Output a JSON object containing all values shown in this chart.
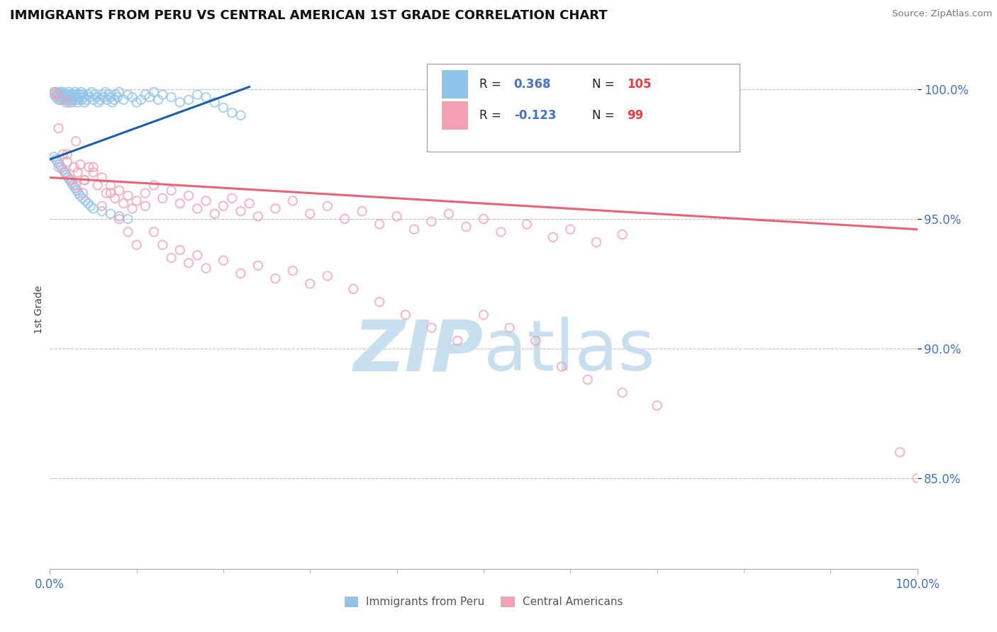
{
  "title": "IMMIGRANTS FROM PERU VS CENTRAL AMERICAN 1ST GRADE CORRELATION CHART",
  "source": "Source: ZipAtlas.com",
  "ylabel": "1st Grade",
  "yticks": [
    0.85,
    0.9,
    0.95,
    1.0
  ],
  "ytick_labels": [
    "85.0%",
    "90.0%",
    "95.0%",
    "100.0%"
  ],
  "xlim": [
    0.0,
    1.0
  ],
  "ylim": [
    0.815,
    1.015
  ],
  "blue_R": "0.368",
  "blue_N": "105",
  "pink_R": "-0.123",
  "pink_N": "99",
  "blue_color": "#90c4e8",
  "pink_color": "#f4a0b5",
  "blue_line_color": "#1a5fa8",
  "pink_line_color": "#e8637a",
  "title_color": "#111111",
  "axis_label_color": "#4472c4",
  "legend_value_blue_color": "#4472c4",
  "legend_value_pink_color": "#e8637a",
  "legend_N_color": "#e84040",
  "watermark_color": "#c8dff0",
  "grid_color": "#c0c0c0",
  "blue_scatter_x": [
    0.005,
    0.006,
    0.007,
    0.008,
    0.009,
    0.01,
    0.01,
    0.011,
    0.012,
    0.013,
    0.014,
    0.015,
    0.015,
    0.016,
    0.017,
    0.018,
    0.019,
    0.02,
    0.02,
    0.021,
    0.022,
    0.023,
    0.024,
    0.025,
    0.025,
    0.026,
    0.027,
    0.028,
    0.029,
    0.03,
    0.03,
    0.031,
    0.032,
    0.033,
    0.034,
    0.035,
    0.036,
    0.037,
    0.038,
    0.039,
    0.04,
    0.042,
    0.044,
    0.046,
    0.048,
    0.05,
    0.052,
    0.054,
    0.056,
    0.058,
    0.06,
    0.062,
    0.064,
    0.066,
    0.068,
    0.07,
    0.072,
    0.074,
    0.076,
    0.078,
    0.08,
    0.085,
    0.09,
    0.095,
    0.1,
    0.105,
    0.11,
    0.115,
    0.12,
    0.125,
    0.13,
    0.14,
    0.15,
    0.16,
    0.17,
    0.18,
    0.19,
    0.2,
    0.21,
    0.22,
    0.005,
    0.007,
    0.009,
    0.011,
    0.013,
    0.015,
    0.017,
    0.019,
    0.021,
    0.023,
    0.025,
    0.027,
    0.029,
    0.031,
    0.033,
    0.035,
    0.038,
    0.041,
    0.044,
    0.047,
    0.05,
    0.06,
    0.07,
    0.08,
    0.09
  ],
  "blue_scatter_y": [
    0.998,
    0.999,
    0.997,
    0.998,
    0.999,
    0.996,
    0.998,
    0.997,
    0.999,
    0.996,
    0.998,
    0.997,
    0.999,
    0.996,
    0.998,
    0.997,
    0.995,
    0.996,
    0.998,
    0.997,
    0.999,
    0.996,
    0.998,
    0.997,
    0.995,
    0.996,
    0.998,
    0.997,
    0.999,
    0.996,
    0.998,
    0.997,
    0.995,
    0.996,
    0.998,
    0.997,
    0.999,
    0.996,
    0.998,
    0.997,
    0.995,
    0.996,
    0.998,
    0.997,
    0.999,
    0.996,
    0.998,
    0.997,
    0.995,
    0.996,
    0.998,
    0.997,
    0.999,
    0.996,
    0.998,
    0.997,
    0.995,
    0.996,
    0.998,
    0.997,
    0.999,
    0.996,
    0.998,
    0.997,
    0.995,
    0.996,
    0.998,
    0.997,
    0.999,
    0.996,
    0.998,
    0.997,
    0.995,
    0.996,
    0.998,
    0.997,
    0.995,
    0.993,
    0.991,
    0.99,
    0.974,
    0.973,
    0.972,
    0.971,
    0.97,
    0.969,
    0.968,
    0.967,
    0.966,
    0.965,
    0.964,
    0.963,
    0.962,
    0.961,
    0.96,
    0.959,
    0.958,
    0.957,
    0.956,
    0.955,
    0.954,
    0.953,
    0.952,
    0.951,
    0.95
  ],
  "pink_scatter_x": [
    0.005,
    0.008,
    0.01,
    0.012,
    0.015,
    0.018,
    0.02,
    0.022,
    0.025,
    0.028,
    0.03,
    0.032,
    0.035,
    0.038,
    0.04,
    0.045,
    0.05,
    0.055,
    0.06,
    0.065,
    0.07,
    0.075,
    0.08,
    0.085,
    0.09,
    0.095,
    0.1,
    0.11,
    0.12,
    0.13,
    0.14,
    0.15,
    0.16,
    0.17,
    0.18,
    0.19,
    0.2,
    0.21,
    0.22,
    0.23,
    0.24,
    0.26,
    0.28,
    0.3,
    0.32,
    0.34,
    0.36,
    0.38,
    0.4,
    0.42,
    0.44,
    0.46,
    0.48,
    0.5,
    0.52,
    0.55,
    0.58,
    0.6,
    0.63,
    0.66,
    0.01,
    0.02,
    0.03,
    0.04,
    0.05,
    0.06,
    0.07,
    0.08,
    0.09,
    0.1,
    0.11,
    0.12,
    0.13,
    0.14,
    0.15,
    0.16,
    0.17,
    0.18,
    0.2,
    0.22,
    0.24,
    0.26,
    0.28,
    0.3,
    0.32,
    0.35,
    0.38,
    0.41,
    0.44,
    0.47,
    0.5,
    0.53,
    0.56,
    0.59,
    0.62,
    0.66,
    0.7,
    0.98,
    1.0
  ],
  "pink_scatter_y": [
    0.999,
    0.998,
    0.97,
    0.996,
    0.975,
    0.968,
    0.972,
    0.995,
    0.965,
    0.97,
    0.963,
    0.968,
    0.971,
    0.96,
    0.965,
    0.97,
    0.968,
    0.963,
    0.966,
    0.96,
    0.963,
    0.958,
    0.961,
    0.956,
    0.959,
    0.954,
    0.957,
    0.96,
    0.963,
    0.958,
    0.961,
    0.956,
    0.959,
    0.954,
    0.957,
    0.952,
    0.955,
    0.958,
    0.953,
    0.956,
    0.951,
    0.954,
    0.957,
    0.952,
    0.955,
    0.95,
    0.953,
    0.948,
    0.951,
    0.946,
    0.949,
    0.952,
    0.947,
    0.95,
    0.945,
    0.948,
    0.943,
    0.946,
    0.941,
    0.944,
    0.985,
    0.975,
    0.98,
    0.965,
    0.97,
    0.955,
    0.96,
    0.95,
    0.945,
    0.94,
    0.955,
    0.945,
    0.94,
    0.935,
    0.938,
    0.933,
    0.936,
    0.931,
    0.934,
    0.929,
    0.932,
    0.927,
    0.93,
    0.925,
    0.928,
    0.923,
    0.918,
    0.913,
    0.908,
    0.903,
    0.913,
    0.908,
    0.903,
    0.893,
    0.888,
    0.883,
    0.878,
    0.86,
    0.85
  ],
  "blue_trendline_x": [
    0.0,
    0.23
  ],
  "blue_trendline_y": [
    0.973,
    1.001
  ],
  "pink_trendline_x": [
    0.0,
    1.0
  ],
  "pink_trendline_y": [
    0.966,
    0.946
  ],
  "figsize": [
    14.06,
    8.92
  ],
  "dpi": 100
}
